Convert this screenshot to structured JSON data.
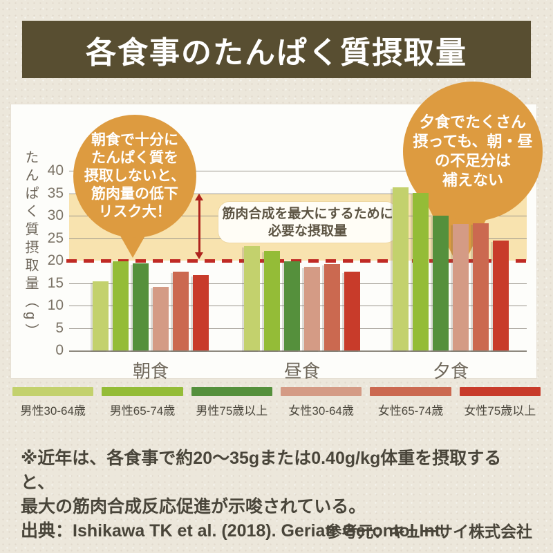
{
  "title": "各食事のたんぱく質摂取量",
  "chart_data": {
    "type": "bar",
    "title": "各食事のたんぱく質摂取量",
    "categories": [
      "朝食",
      "昼食",
      "夕食"
    ],
    "series": [
      {
        "name": "男性30-64歳",
        "color": "#c3d16d",
        "values": [
          15.4,
          23.2,
          36.3
        ]
      },
      {
        "name": "男性65-74歳",
        "color": "#94bc37",
        "values": [
          19.8,
          22.2,
          35.1
        ]
      },
      {
        "name": "男性75歳以上",
        "color": "#55903c",
        "values": [
          19.4,
          19.9,
          30.0
        ]
      },
      {
        "name": "女性30-64歳",
        "color": "#d49b85",
        "values": [
          14.1,
          18.6,
          28.1
        ]
      },
      {
        "name": "女性65-74歳",
        "color": "#cb6950",
        "values": [
          17.6,
          19.2,
          28.3
        ]
      },
      {
        "name": "女性75歳以上",
        "color": "#c83b2a",
        "values": [
          16.7,
          17.5,
          24.4
        ]
      }
    ],
    "xlabel": "",
    "ylabel": "たんぱく質摂取量（g）",
    "ylim": [
      0,
      40
    ],
    "ytick_step": 5,
    "grid": true,
    "legend_position": "bottom",
    "reference_line": {
      "value": 20,
      "style": "dashed",
      "color": "#c02a24"
    },
    "target_band": {
      "from": 20,
      "to": 35,
      "color": "#f8e3af",
      "label": "筋肉合成を最大にするために必要な摂取量"
    }
  },
  "band_label": {
    "line1": "筋肉合成を最大にするために",
    "line2": "必要な摂取量"
  },
  "callouts": {
    "breakfast": {
      "color": "#dd9b40",
      "lines": [
        "朝食で十分に",
        "たんぱく質を",
        "摂取しないと、",
        "筋肉量の低下",
        "リスク大！"
      ]
    },
    "dinner": {
      "color": "#dd9b40",
      "lines": [
        "夕食でたくさん",
        "摂っても、朝・昼",
        "の不足分は",
        "補えない"
      ]
    }
  },
  "notes": {
    "line1": "※近年は、各食事で約20〜35gまたは0.40g/kg体重を摂取すると、",
    "line2": "最大の筋肉合成反応促進が示唆されている。",
    "source": "出典：Ishikawa TK et al. (2018). Geriatr Gerontol Int.",
    "credit": "参考元：キューサイ株式会社"
  }
}
